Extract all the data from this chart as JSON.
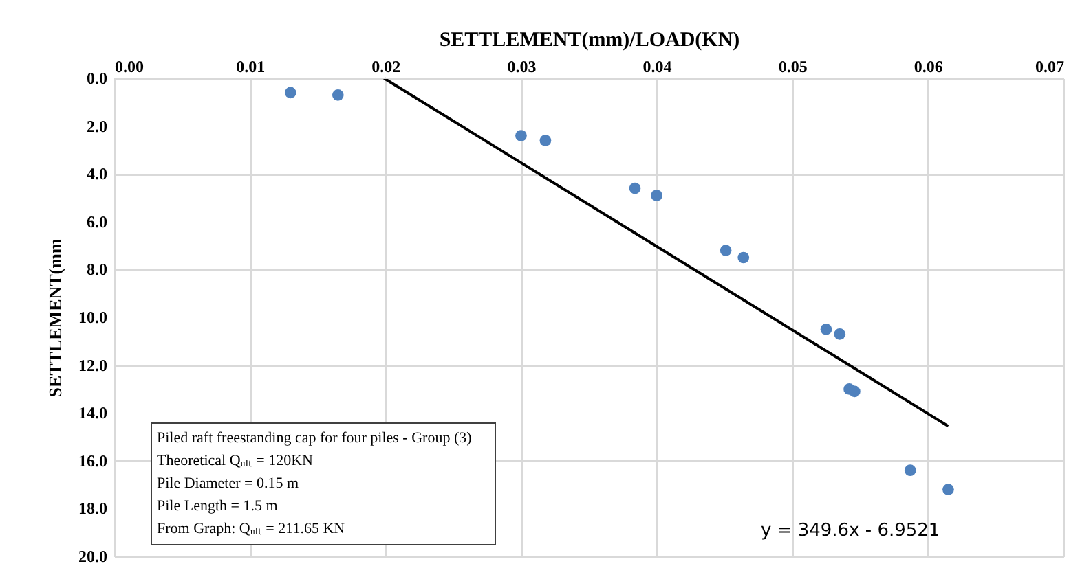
{
  "chart_data": {
    "type": "scatter",
    "xlabel": "SETTLEMENT(mm)/LOAD(KN)",
    "ylabel": "SETTLEMENT(mm",
    "xlim": [
      0,
      0.07
    ],
    "xticks": [
      {
        "value": 0,
        "label": "0.00"
      },
      {
        "value": 0.01,
        "label": "0.01"
      },
      {
        "value": 0.02,
        "label": "0.02"
      },
      {
        "value": 0.03,
        "label": "0.03"
      },
      {
        "value": 0.04,
        "label": "0.04"
      },
      {
        "value": 0.05,
        "label": "0.05"
      },
      {
        "value": 0.06,
        "label": "0.06"
      },
      {
        "value": 0.07,
        "label": "0.07"
      }
    ],
    "ylim": [
      20,
      0
    ],
    "yticks": [
      {
        "value": 0,
        "label": "0.0"
      },
      {
        "value": 2,
        "label": "2.0"
      },
      {
        "value": 4,
        "label": "4.0"
      },
      {
        "value": 6,
        "label": "6.0"
      },
      {
        "value": 8,
        "label": "8.0"
      },
      {
        "value": 10,
        "label": "10.0"
      },
      {
        "value": 12,
        "label": "12.0"
      },
      {
        "value": 14,
        "label": "14.0"
      },
      {
        "value": 16,
        "label": "16.0"
      },
      {
        "value": 18,
        "label": "18.0"
      },
      {
        "value": 20,
        "label": "20.0"
      }
    ],
    "grid": true,
    "series": [
      {
        "type": "scatter",
        "marker": "circle",
        "color": "#4f81bd",
        "x": [
          0.013,
          0.0165,
          0.03,
          0.0318,
          0.0384,
          0.04,
          0.0451,
          0.0464,
          0.0525,
          0.0535,
          0.0542,
          0.0546,
          0.0587,
          0.0615
        ],
        "values": [
          0.6,
          0.7,
          2.4,
          2.6,
          4.6,
          4.9,
          7.2,
          7.5,
          10.5,
          10.7,
          13.0,
          13.1,
          16.4,
          17.2
        ]
      },
      {
        "type": "line",
        "marker": "none",
        "line_style": "solid",
        "color": "#000000",
        "x": [
          0.0199,
          0.0615
        ],
        "values": [
          0.0,
          14.55
        ]
      }
    ],
    "annotations": [
      "Piled raft freestanding cap for four piles - Group (3)",
      "Theoretical Qᵤₗₜ = 120KN",
      "Pile Diameter  = 0.15  m",
      "Pile Length = 1.5  m",
      "From Graph:  Qᵤₗₜ = 211.65  KN",
      "y = 349.6x - 6.9521"
    ]
  }
}
